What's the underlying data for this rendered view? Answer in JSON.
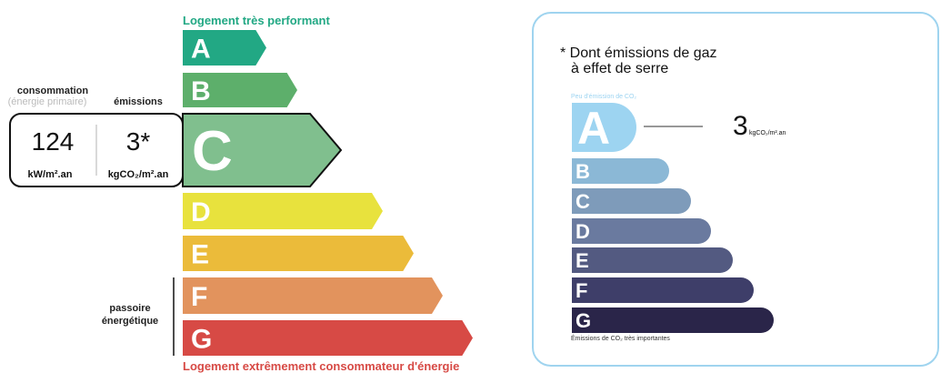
{
  "energy_label": {
    "top_caption": "Logement très performant",
    "bottom_caption": "Logement extrêmement consommateur d'énergie",
    "consumption_label": "consommation",
    "consumption_sublabel": "(énergie primaire)",
    "emissions_label": "émissions",
    "consumption_value": "124",
    "consumption_unit": "kW/m².an",
    "emissions_value": "3*",
    "emissions_unit": "kgCO₂/m².an",
    "passoire_label_line1": "passoire",
    "passoire_label_line2": "énergétique",
    "current_class": "C",
    "classes": [
      {
        "letter": "A",
        "color": "#22a884"
      },
      {
        "letter": "B",
        "color": "#5daf6b"
      },
      {
        "letter": "C",
        "color": "#80bf8e"
      },
      {
        "letter": "D",
        "color": "#e8e23d"
      },
      {
        "letter": "E",
        "color": "#ebbb3a"
      },
      {
        "letter": "F",
        "color": "#e2935d"
      },
      {
        "letter": "G",
        "color": "#d74a45"
      }
    ],
    "top_caption_color": "#22a884",
    "bottom_caption_color": "#d74a45"
  },
  "ges_label": {
    "title_line1": "* Dont émissions de gaz",
    "title_line2": "à effet de serre",
    "top_caption": "Peu d'émission de CO₂",
    "bottom_caption": "Émissions de CO₂ très importantes",
    "value": "3",
    "unit": "kgCO₂/m².an",
    "current_class": "A",
    "classes": [
      {
        "letter": "A",
        "color": "#9dd4f1"
      },
      {
        "letter": "B",
        "color": "#8bb8d6"
      },
      {
        "letter": "C",
        "color": "#7e9bba"
      },
      {
        "letter": "D",
        "color": "#6a7a9f"
      },
      {
        "letter": "E",
        "color": "#535a81"
      },
      {
        "letter": "F",
        "color": "#3e3e69"
      },
      {
        "letter": "G",
        "color": "#2a2549"
      }
    ],
    "border_color": "#9fd4ef"
  }
}
